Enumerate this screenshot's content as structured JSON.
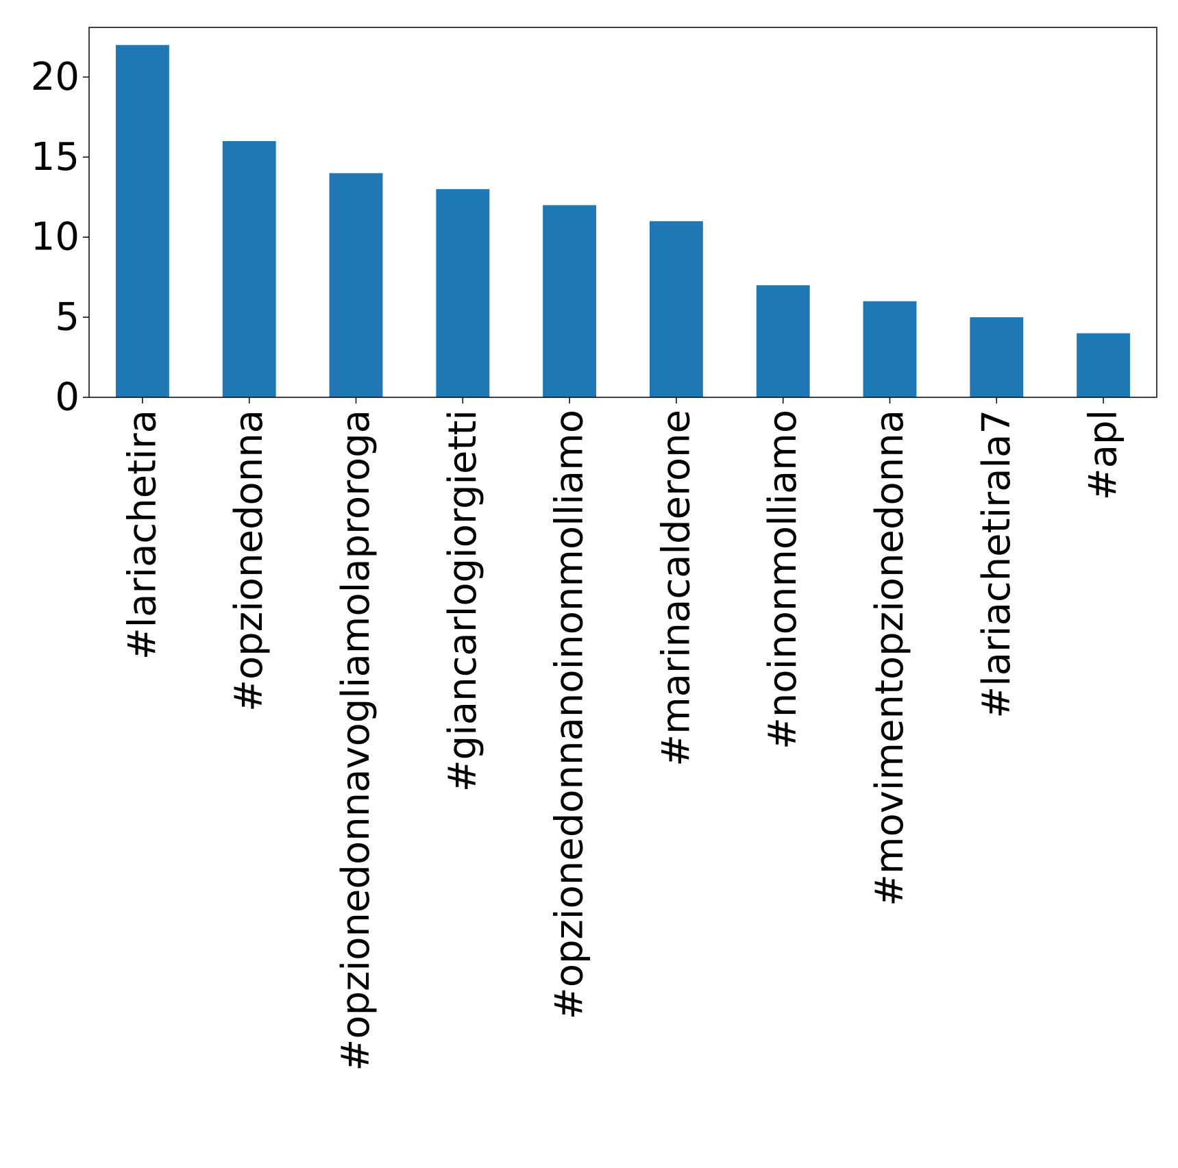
{
  "chart_data": {
    "type": "bar",
    "categories": [
      "#lariachetira",
      "#opzionedonna",
      "#opzionedonnavogliamolaproroga",
      "#giancarlogiorgietti",
      "#opzionedonnanoinonmolliamo",
      "#marinacalderone",
      "#noinonmolliamo",
      "#movimentopzionedonna",
      "#lariachetirala7",
      "#apl"
    ],
    "values": [
      22,
      16,
      14,
      13,
      12,
      11,
      7,
      6,
      5,
      4
    ],
    "yticks": [
      "0",
      "5",
      "10",
      "15",
      "20"
    ],
    "ylim": [
      0,
      23.1
    ],
    "title": "",
    "xlabel": "",
    "ylabel": "",
    "grid": false,
    "bar_color": "#1f77b4"
  }
}
